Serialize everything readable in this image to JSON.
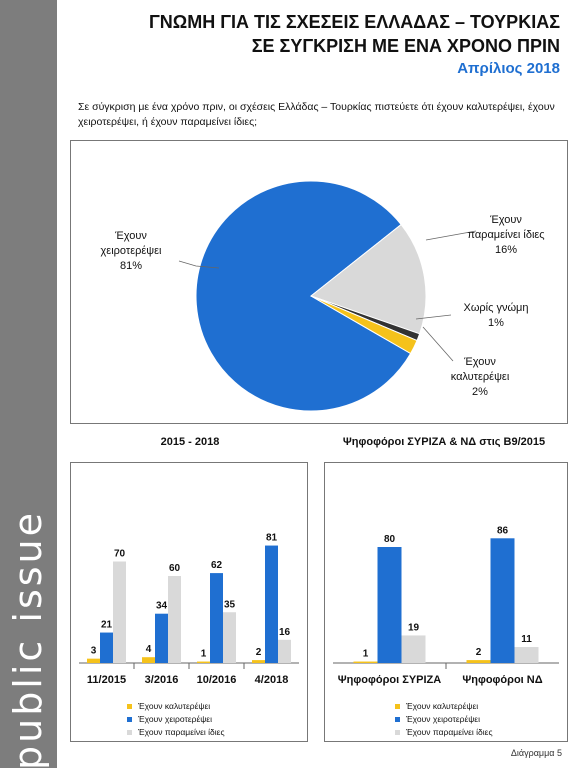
{
  "header": {
    "title_line1": "ΓΝΩΜΗ ΓΙΑ ΤΙΣ ΣΧΕΣΕΙΣ ΕΛΛΑΔΑΣ – ΤΟΥΡΚΙΑΣ",
    "title_line2": "ΣΕ ΣΥΓΚΡΙΣΗ ΜΕ ΕΝΑ ΧΡΟΝΟ ΠΡΙΝ",
    "date": "Απρίλιος 2018"
  },
  "question": "Σε σύγκριση με ένα χρόνο πριν, οι σχέσεις Ελλάδας – Τουρκίας πιστεύετε ότι έχουν καλυτερέψει, έχουν χειροτερέψει, ή έχουν παραμείνει ίδιες;",
  "brand": "public issue",
  "footer": "Διάγραμμα 5",
  "colors": {
    "better": "#f5c21b",
    "worse": "#1f6fd1",
    "same": "#d9d9d9",
    "no_opinion": "#333333"
  },
  "chart_data": [
    {
      "type": "pie",
      "title": "",
      "slices": [
        {
          "label": "Έχουν χειροτερέψει",
          "value": 81,
          "value_label": "81%"
        },
        {
          "label": "Έχουν παραμείνει ίδιες",
          "value": 16,
          "value_label": "16%"
        },
        {
          "label": "Χωρίς γνώμη",
          "value": 1,
          "value_label": "1%"
        },
        {
          "label": "Έχουν καλυτερέψει",
          "value": 2,
          "value_label": "2%"
        }
      ]
    },
    {
      "type": "bar",
      "title": "2015 - 2018",
      "categories": [
        "11/2015",
        "3/2016",
        "10/2016",
        "4/2018"
      ],
      "series": [
        {
          "name": "Έχουν καλυτερέψει",
          "values": [
            3,
            4,
            1,
            2
          ]
        },
        {
          "name": "Έχουν χειροτερέψει",
          "values": [
            21,
            34,
            62,
            81
          ]
        },
        {
          "name": "Έχουν παραμείνει ίδιες",
          "values": [
            70,
            60,
            35,
            16
          ]
        }
      ],
      "ylim": [
        0,
        100
      ],
      "legend": "bottom"
    },
    {
      "type": "bar",
      "title": "Ψηφοφόροι ΣΥΡΙΖΑ & ΝΔ στις Β9/2015",
      "categories": [
        "Ψηφοφόροι ΣΥΡΙΖΑ",
        "Ψηφοφόροι ΝΔ"
      ],
      "series": [
        {
          "name": "Έχουν καλυτερέψει",
          "values": [
            1,
            2
          ]
        },
        {
          "name": "Έχουν χειροτερέψει",
          "values": [
            80,
            86
          ]
        },
        {
          "name": "Έχουν παραμείνει ίδιες",
          "values": [
            19,
            11
          ]
        }
      ],
      "ylim": [
        0,
        100
      ],
      "legend": "bottom"
    }
  ]
}
